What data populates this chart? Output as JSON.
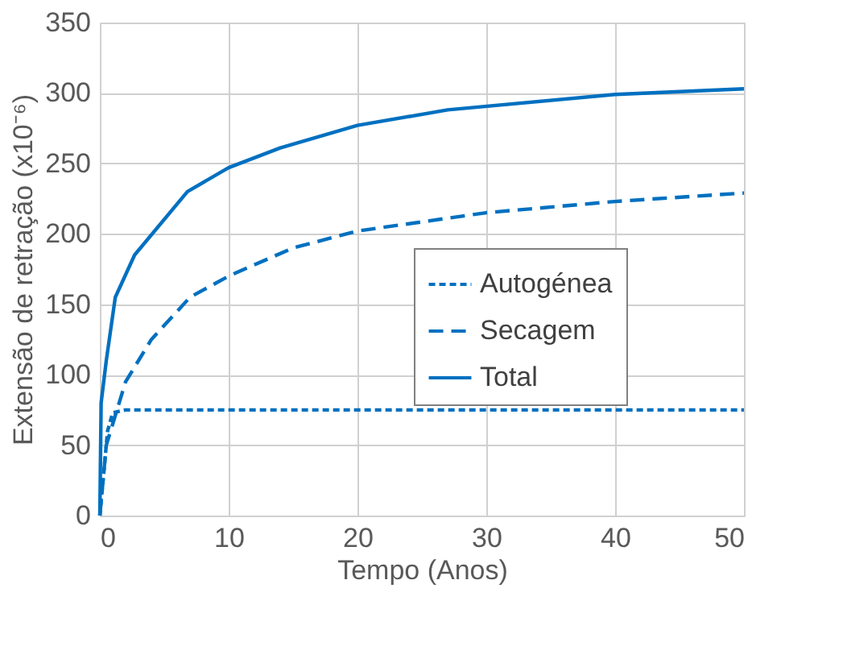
{
  "chart_data": {
    "type": "line",
    "xlabel": "Tempo (Anos)",
    "ylabel": "Extensão de retração (x10⁻⁶)",
    "xlim": [
      0,
      50
    ],
    "xticks": [
      0,
      10,
      20,
      30,
      40,
      50
    ],
    "ylim": [
      0,
      350
    ],
    "yticks": [
      0,
      50,
      100,
      150,
      200,
      250,
      300,
      350
    ],
    "grid": true,
    "legend": "right",
    "marker": "none",
    "series": [
      {
        "name": "Autogénea",
        "color": "#0070c0",
        "line_style": "dotted",
        "x": [
          0,
          0.3,
          0.6,
          1,
          2,
          50
        ],
        "values": [
          0,
          30,
          60,
          73,
          75,
          75
        ]
      },
      {
        "name": "Secagem",
        "color": "#0070c0",
        "line_style": "dashed",
        "x": [
          0,
          0.5,
          1,
          2,
          4,
          7,
          10,
          15,
          20,
          30,
          40,
          50
        ],
        "values": [
          0,
          50,
          65,
          95,
          125,
          155,
          170,
          190,
          202,
          215,
          223,
          229
        ]
      },
      {
        "name": "Total",
        "color": "#0070c0",
        "line_style": "solid",
        "x": [
          0,
          0.1,
          0.5,
          1.2,
          2.7,
          6.8,
          10,
          14,
          20,
          27,
          40,
          50
        ],
        "values": [
          0,
          80,
          110,
          155,
          185,
          230,
          247,
          261,
          277,
          288,
          299,
          303
        ]
      }
    ]
  }
}
